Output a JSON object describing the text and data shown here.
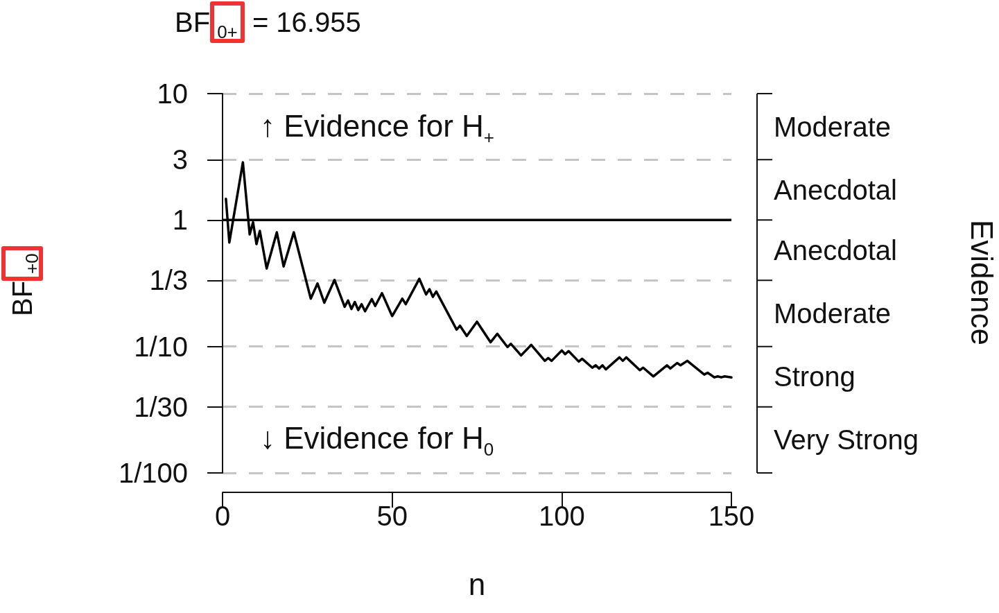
{
  "chart_data": {
    "type": "line",
    "title": "BF$_{0+}$ = 16.955",
    "xlabel": "n",
    "ylabel": "BF$_{+0}$",
    "annotations": [
      "↑ Evidence for H$_{+}$",
      "↓ Evidence for H$_{0}$",
      "Evidence",
      "Moderate",
      "Anecdotal",
      "Anecdotal",
      "Moderate",
      "Strong",
      "Very Strong"
    ],
    "series": [
      {
        "color": "#000000",
        "x": [
          1,
          2,
          6,
          8,
          9,
          10,
          11,
          13,
          16,
          18,
          21,
          26,
          28,
          30,
          33,
          36,
          37,
          38,
          39,
          40,
          41,
          42,
          44,
          45,
          47,
          50,
          53,
          54,
          58,
          60,
          61,
          62,
          63,
          69,
          70,
          72,
          75,
          79,
          81,
          84,
          85,
          88,
          91,
          95,
          96,
          97,
          100,
          101,
          102,
          105,
          106,
          109,
          110,
          111,
          112,
          113,
          117,
          118,
          119,
          123,
          124,
          127,
          131,
          132,
          134,
          135,
          137,
          142,
          143,
          145,
          146,
          147,
          148,
          150
        ],
        "values": [
          1.47,
          0.665,
          2.86,
          0.77,
          0.96,
          0.645,
          0.82,
          0.414,
          0.8,
          0.43,
          0.8,
          0.239,
          0.315,
          0.222,
          0.336,
          0.206,
          0.231,
          0.198,
          0.225,
          0.194,
          0.216,
          0.19,
          0.237,
          0.209,
          0.264,
          0.174,
          0.239,
          0.216,
          0.343,
          0.258,
          0.284,
          0.247,
          0.272,
          0.136,
          0.146,
          0.121,
          0.157,
          0.108,
          0.126,
          0.099,
          0.105,
          0.085,
          0.103,
          0.077,
          0.081,
          0.077,
          0.093,
          0.087,
          0.092,
          0.076,
          0.08,
          0.068,
          0.071,
          0.067,
          0.071,
          0.066,
          0.082,
          0.077,
          0.082,
          0.065,
          0.068,
          0.058,
          0.071,
          0.067,
          0.074,
          0.071,
          0.077,
          0.06,
          0.062,
          0.057,
          0.058,
          0.057,
          0.058,
          0.057
        ]
      }
    ],
    "xlim": [
      0,
      150
    ],
    "xticks": [
      0,
      50,
      100,
      150
    ],
    "ylim": [
      0.01,
      10
    ],
    "yticks": [
      10,
      3,
      1,
      {
        "value": 0.3333,
        "label": "1/3"
      },
      {
        "value": 0.1,
        "label": "1/10"
      },
      {
        "value": 0.03333,
        "label": "1/30"
      },
      {
        "value": 0.01,
        "label": "1/100"
      }
    ],
    "ref_lines": [
      {
        "axis": "y",
        "value": 1,
        "color": "#000000",
        "line_style": "solid"
      }
    ],
    "log": "y",
    "grid": "y",
    "marker": "none",
    "line_style": "solid"
  }
}
